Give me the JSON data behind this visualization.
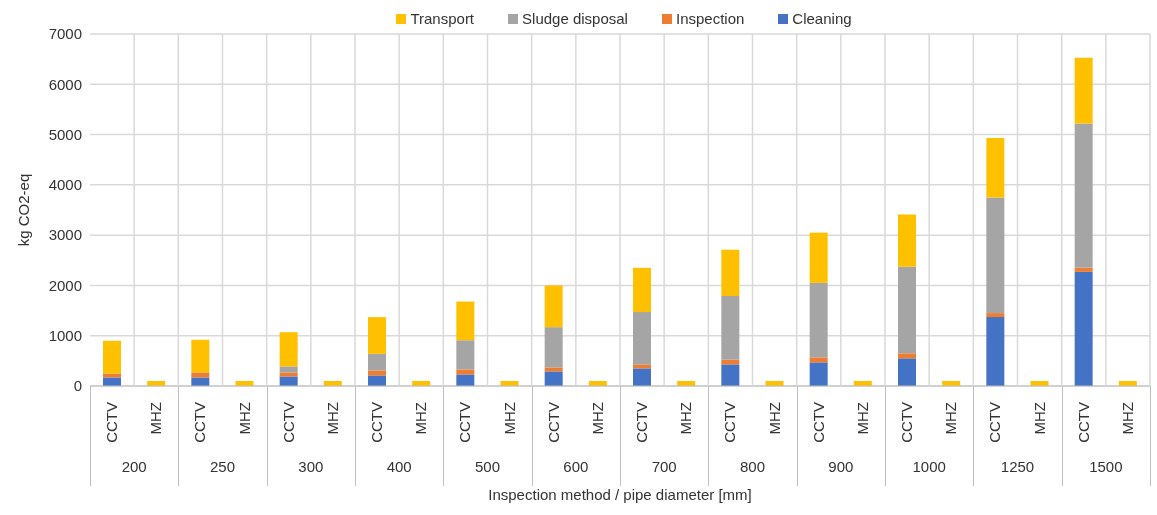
{
  "chart_data": {
    "type": "bar",
    "stacked": true,
    "xlabel": "Inspection method / pipe diameter [mm]",
    "ylabel": "kg CO2-eq",
    "categories": [
      "CCTV",
      "MHZ",
      "CCTV",
      "MHZ",
      "CCTV",
      "MHZ",
      "CCTV",
      "MHZ",
      "CCTV",
      "MHZ",
      "CCTV",
      "MHZ",
      "CCTV",
      "MHZ",
      "CCTV",
      "MHZ",
      "CCTV",
      "MHZ",
      "CCTV",
      "MHZ",
      "CCTV",
      "MHZ",
      "CCTV",
      "MHZ"
    ],
    "annotations": [
      "200",
      "250",
      "300",
      "400",
      "500",
      "600",
      "700",
      "800",
      "900",
      "1000",
      "1250",
      "1500"
    ],
    "series": [
      {
        "name": "Cleaning",
        "color": "#4472c4",
        "values": [
          170,
          0,
          170,
          0,
          190,
          0,
          210,
          0,
          230,
          0,
          290,
          0,
          350,
          0,
          430,
          0,
          470,
          0,
          550,
          0,
          1370,
          0,
          2270,
          0
        ]
      },
      {
        "name": "Inspection",
        "color": "#ed7d31",
        "values": [
          80,
          0,
          100,
          0,
          80,
          0,
          100,
          0,
          100,
          0,
          80,
          0,
          80,
          0,
          90,
          0,
          100,
          0,
          100,
          0,
          80,
          0,
          80,
          0
        ]
      },
      {
        "name": "Sludge disposal",
        "color": "#a5a5a5",
        "values": [
          0,
          0,
          0,
          0,
          120,
          0,
          330,
          0,
          580,
          0,
          800,
          0,
          1040,
          0,
          1270,
          0,
          1480,
          0,
          1720,
          0,
          2300,
          0,
          2870,
          0
        ]
      },
      {
        "name": "Transport",
        "color": "#ffc000",
        "values": [
          650,
          100,
          650,
          100,
          680,
          100,
          730,
          100,
          770,
          100,
          830,
          100,
          880,
          100,
          920,
          100,
          1000,
          100,
          1040,
          100,
          1180,
          100,
          1310,
          100
        ]
      }
    ],
    "ylim": [
      0,
      7000
    ],
    "yticks": [
      0,
      1000,
      2000,
      3000,
      4000,
      5000,
      6000,
      7000
    ],
    "grid": true,
    "legend": "top"
  }
}
